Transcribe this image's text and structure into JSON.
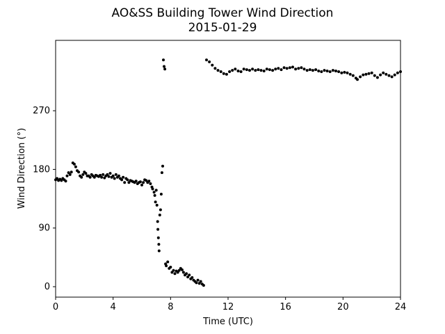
{
  "chart_data": {
    "type": "scatter",
    "title": "AO&SS Building Tower Wind Direction",
    "subtitle": "2015-01-29",
    "xlabel": "Time (UTC)",
    "ylabel": "Wind Direction (°)",
    "xlim": [
      0,
      24
    ],
    "ylim": [
      -16,
      378
    ],
    "xticks": [
      0,
      4,
      8,
      12,
      16,
      20,
      24
    ],
    "yticks": [
      0,
      90,
      180,
      270
    ],
    "grid": false,
    "marker_color": "#000000",
    "series": [
      {
        "points": [
          [
            0.0,
            164
          ],
          [
            0.1,
            166
          ],
          [
            0.2,
            163
          ],
          [
            0.3,
            165
          ],
          [
            0.4,
            163
          ],
          [
            0.5,
            166
          ],
          [
            0.6,
            164
          ],
          [
            0.7,
            162
          ],
          [
            0.8,
            170
          ],
          [
            0.9,
            175
          ],
          [
            1.0,
            172
          ],
          [
            1.1,
            176
          ],
          [
            1.2,
            190
          ],
          [
            1.3,
            188
          ],
          [
            1.4,
            184
          ],
          [
            1.5,
            178
          ],
          [
            1.6,
            176
          ],
          [
            1.7,
            170
          ],
          [
            1.8,
            168
          ],
          [
            1.9,
            172
          ],
          [
            2.0,
            176
          ],
          [
            2.1,
            174
          ],
          [
            2.2,
            170
          ],
          [
            2.3,
            170
          ],
          [
            2.4,
            168
          ],
          [
            2.5,
            172
          ],
          [
            2.6,
            170
          ],
          [
            2.7,
            168
          ],
          [
            2.8,
            171
          ],
          [
            2.9,
            170
          ],
          [
            3.0,
            169
          ],
          [
            3.1,
            171
          ],
          [
            3.2,
            168
          ],
          [
            3.3,
            172
          ],
          [
            3.4,
            167
          ],
          [
            3.5,
            170
          ],
          [
            3.6,
            172
          ],
          [
            3.7,
            169
          ],
          [
            3.8,
            174
          ],
          [
            3.9,
            168
          ],
          [
            4.0,
            170
          ],
          [
            4.1,
            166
          ],
          [
            4.2,
            172
          ],
          [
            4.3,
            168
          ],
          [
            4.4,
            170
          ],
          [
            4.5,
            166
          ],
          [
            4.6,
            164
          ],
          [
            4.7,
            168
          ],
          [
            4.8,
            160
          ],
          [
            4.9,
            166
          ],
          [
            5.0,
            164
          ],
          [
            5.1,
            160
          ],
          [
            5.2,
            163
          ],
          [
            5.3,
            162
          ],
          [
            5.4,
            161
          ],
          [
            5.5,
            160
          ],
          [
            5.6,
            162
          ],
          [
            5.7,
            158
          ],
          [
            5.8,
            160
          ],
          [
            5.9,
            161
          ],
          [
            6.0,
            156
          ],
          [
            6.1,
            160
          ],
          [
            6.2,
            164
          ],
          [
            6.3,
            163
          ],
          [
            6.4,
            160
          ],
          [
            6.5,
            162
          ],
          [
            6.6,
            158
          ],
          [
            6.7,
            153
          ],
          [
            6.75,
            150
          ],
          [
            6.85,
            145
          ],
          [
            6.9,
            140
          ],
          [
            6.95,
            130
          ],
          [
            7.0,
            148
          ],
          [
            7.05,
            125
          ],
          [
            7.1,
            100
          ],
          [
            7.12,
            88
          ],
          [
            7.15,
            75
          ],
          [
            7.18,
            65
          ],
          [
            7.2,
            55
          ],
          [
            7.25,
            110
          ],
          [
            7.3,
            118
          ],
          [
            7.35,
            142
          ],
          [
            7.4,
            175
          ],
          [
            7.45,
            185
          ],
          [
            7.5,
            348
          ],
          [
            7.55,
            338
          ],
          [
            7.6,
            334
          ],
          [
            7.65,
            35
          ],
          [
            7.7,
            32
          ],
          [
            7.8,
            38
          ],
          [
            7.9,
            28
          ],
          [
            8.0,
            30
          ],
          [
            8.1,
            22
          ],
          [
            8.2,
            25
          ],
          [
            8.3,
            20
          ],
          [
            8.4,
            24
          ],
          [
            8.5,
            22
          ],
          [
            8.6,
            25
          ],
          [
            8.7,
            28
          ],
          [
            8.8,
            26
          ],
          [
            8.9,
            22
          ],
          [
            9.0,
            18
          ],
          [
            9.1,
            20
          ],
          [
            9.2,
            15
          ],
          [
            9.3,
            18
          ],
          [
            9.4,
            12
          ],
          [
            9.5,
            14
          ],
          [
            9.6,
            10
          ],
          [
            9.7,
            8
          ],
          [
            9.8,
            6
          ],
          [
            9.9,
            10
          ],
          [
            10.0,
            5
          ],
          [
            10.1,
            8
          ],
          [
            10.2,
            4
          ],
          [
            10.3,
            2
          ],
          [
            10.5,
            348
          ],
          [
            10.7,
            345
          ],
          [
            10.9,
            340
          ],
          [
            11.1,
            335
          ],
          [
            11.3,
            332
          ],
          [
            11.5,
            330
          ],
          [
            11.7,
            327
          ],
          [
            11.9,
            326
          ],
          [
            12.1,
            330
          ],
          [
            12.3,
            332
          ],
          [
            12.5,
            334
          ],
          [
            12.7,
            331
          ],
          [
            12.9,
            330
          ],
          [
            13.1,
            334
          ],
          [
            13.3,
            333
          ],
          [
            13.5,
            332
          ],
          [
            13.7,
            334
          ],
          [
            13.9,
            332
          ],
          [
            14.1,
            333
          ],
          [
            14.3,
            332
          ],
          [
            14.5,
            331
          ],
          [
            14.7,
            334
          ],
          [
            14.9,
            333
          ],
          [
            15.1,
            332
          ],
          [
            15.3,
            334
          ],
          [
            15.5,
            335
          ],
          [
            15.7,
            333
          ],
          [
            15.9,
            336
          ],
          [
            16.1,
            335
          ],
          [
            16.3,
            336
          ],
          [
            16.5,
            337
          ],
          [
            16.7,
            334
          ],
          [
            16.9,
            335
          ],
          [
            17.1,
            336
          ],
          [
            17.3,
            334
          ],
          [
            17.5,
            332
          ],
          [
            17.7,
            333
          ],
          [
            17.9,
            332
          ],
          [
            18.1,
            333
          ],
          [
            18.3,
            331
          ],
          [
            18.5,
            330
          ],
          [
            18.7,
            332
          ],
          [
            18.9,
            331
          ],
          [
            19.1,
            330
          ],
          [
            19.3,
            332
          ],
          [
            19.5,
            331
          ],
          [
            19.7,
            330
          ],
          [
            19.9,
            328
          ],
          [
            20.1,
            329
          ],
          [
            20.3,
            328
          ],
          [
            20.5,
            326
          ],
          [
            20.7,
            324
          ],
          [
            20.9,
            320
          ],
          [
            21.0,
            318
          ],
          [
            21.2,
            322
          ],
          [
            21.4,
            325
          ],
          [
            21.6,
            326
          ],
          [
            21.8,
            327
          ],
          [
            22.0,
            328
          ],
          [
            22.2,
            324
          ],
          [
            22.4,
            321
          ],
          [
            22.6,
            325
          ],
          [
            22.8,
            328
          ],
          [
            23.0,
            326
          ],
          [
            23.2,
            324
          ],
          [
            23.4,
            322
          ],
          [
            23.6,
            325
          ],
          [
            23.8,
            328
          ],
          [
            24.0,
            330
          ]
        ]
      }
    ]
  }
}
